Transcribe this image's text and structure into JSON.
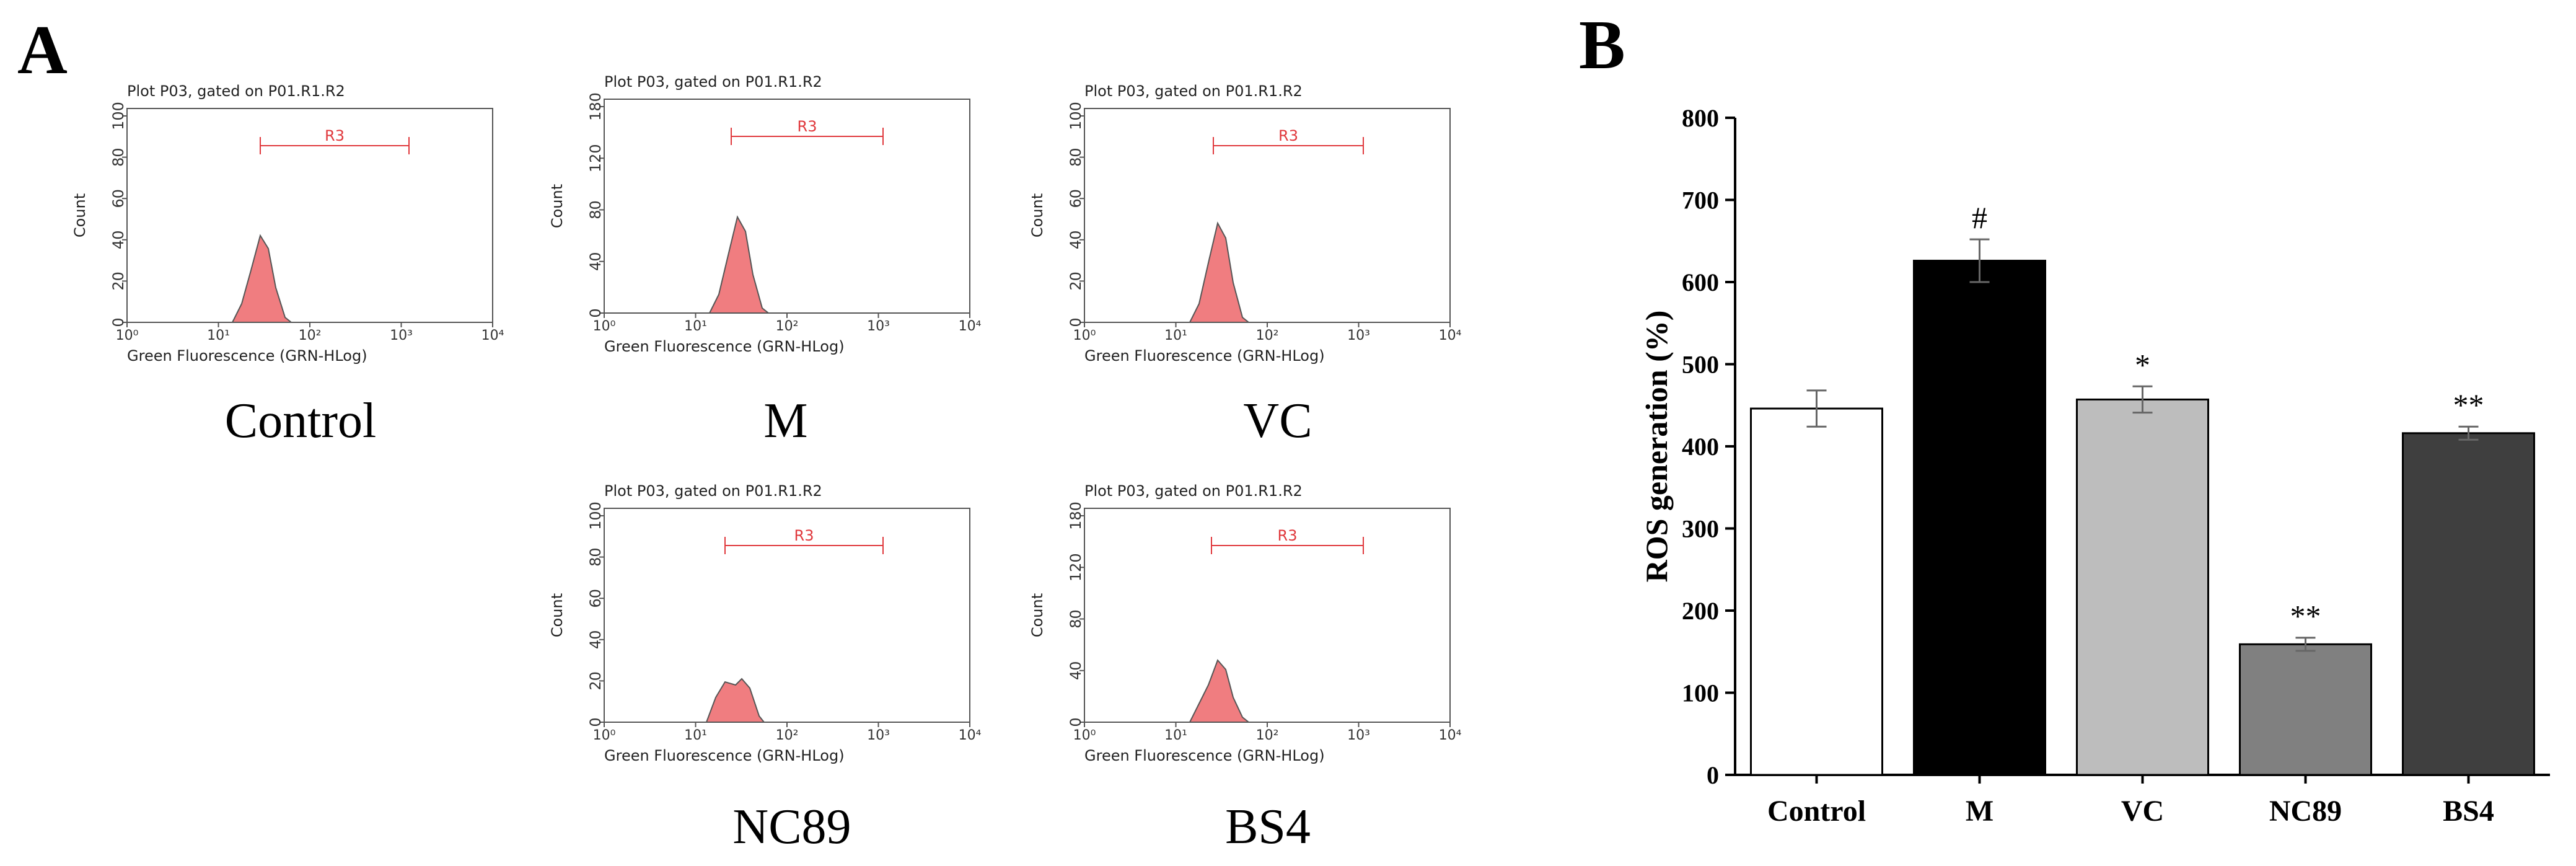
{
  "panel_a": {
    "letter": "A",
    "plots": [
      {
        "id": "control",
        "plot_title": "Plot P03, gated on P01.R1.R2",
        "label": "Control",
        "ylabel": "Count",
        "xlabel": "Green Fluorescence (GRN-HLog)",
        "gate": "R3",
        "yticks": [
          "0",
          "20",
          "40",
          "60",
          "80",
          "100"
        ],
        "xticks": [
          "10⁰",
          "10¹",
          "10²",
          "10³",
          "10⁴"
        ],
        "hist_color": "#f07d80"
      },
      {
        "id": "m",
        "plot_title": "Plot P03, gated on P01.R1.R2",
        "label": "M",
        "ylabel": "Count",
        "xlabel": "Green Fluorescence (GRN-HLog)",
        "gate": "R3",
        "yticks": [
          "0",
          "40",
          "80",
          "120",
          "180"
        ],
        "xticks": [
          "10⁰",
          "10¹",
          "10²",
          "10³",
          "10⁴"
        ],
        "hist_color": "#f07d80"
      },
      {
        "id": "vc",
        "plot_title": "Plot P03, gated on P01.R1.R2",
        "label": "VC",
        "ylabel": "Count",
        "xlabel": "Green Fluorescence (GRN-HLog)",
        "gate": "R3",
        "yticks": [
          "0",
          "20",
          "40",
          "60",
          "80",
          "100"
        ],
        "xticks": [
          "10⁰",
          "10¹",
          "10²",
          "10³",
          "10⁴"
        ],
        "hist_color": "#f07d80"
      },
      {
        "id": "nc89",
        "plot_title": "Plot P03, gated on P01.R1.R2",
        "label": "NC89",
        "ylabel": "Count",
        "xlabel": "Green Fluorescence (GRN-HLog)",
        "gate": "R3",
        "yticks": [
          "0",
          "20",
          "40",
          "60",
          "80",
          "100"
        ],
        "xticks": [
          "10⁰",
          "10¹",
          "10²",
          "10³",
          "10⁴"
        ],
        "hist_color": "#f07d80"
      },
      {
        "id": "bs4",
        "plot_title": "Plot P03, gated on P01.R1.R2",
        "label": "BS4",
        "ylabel": "Count",
        "xlabel": "Green Fluorescence (GRN-HLog)",
        "gate": "R3",
        "yticks": [
          "0",
          "40",
          "80",
          "120",
          "180"
        ],
        "xticks": [
          "10⁰",
          "10¹",
          "10²",
          "10³",
          "10⁴"
        ],
        "hist_color": "#f07d80"
      }
    ]
  },
  "panel_b": {
    "letter": "B"
  },
  "chart_data": {
    "type": "bar",
    "title": "",
    "xlabel": "",
    "ylabel": "ROS generation (%)",
    "categories": [
      "Control",
      "M",
      "VC",
      "NC89",
      "BS4"
    ],
    "values": [
      446,
      626,
      457,
      159,
      416
    ],
    "errors": [
      22,
      26,
      16,
      8,
      8
    ],
    "annotations": [
      "",
      "#",
      "*",
      "**",
      "**"
    ],
    "bar_colors": [
      "#ffffff",
      "#000000",
      "#bdbdbd",
      "#808080",
      "#3f3f3f"
    ],
    "ylim": [
      0,
      800
    ],
    "yticks": [
      0,
      100,
      200,
      300,
      400,
      500,
      600,
      700,
      800
    ],
    "grid": false
  }
}
